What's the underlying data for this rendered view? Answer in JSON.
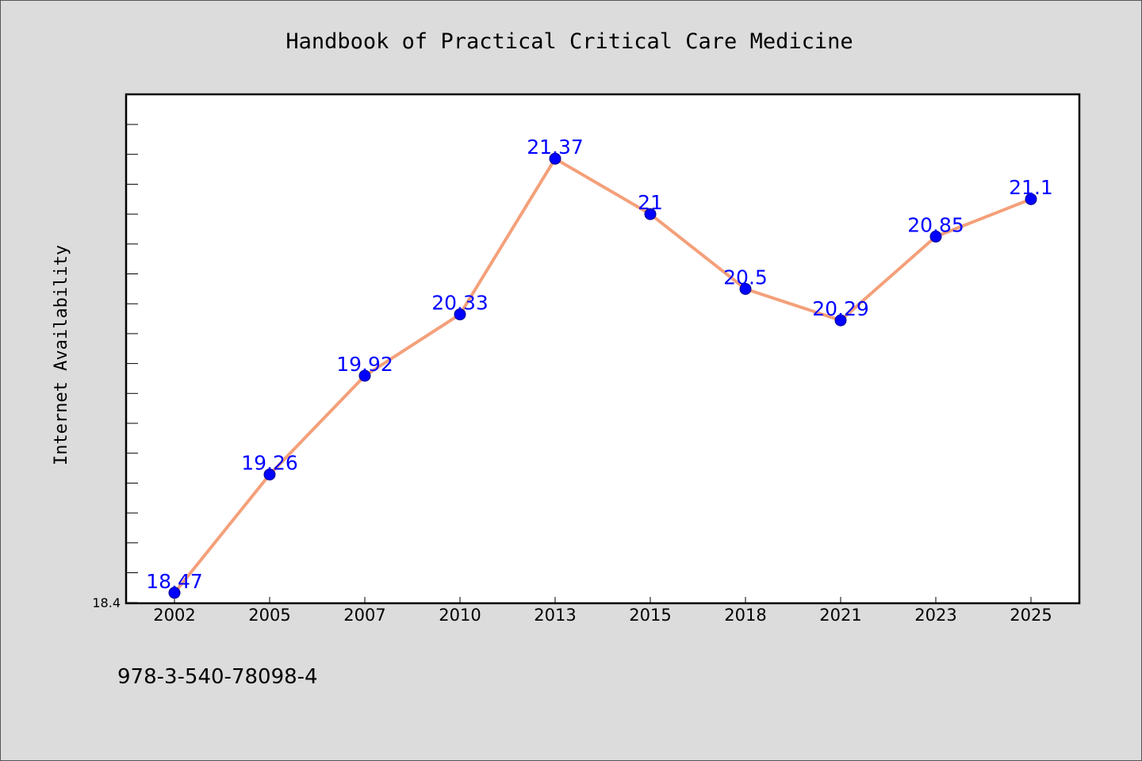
{
  "chart_data": {
    "type": "line",
    "title": "Handbook of Practical Critical Care Medicine",
    "ylabel": "Internet Availability",
    "xlabel": "",
    "categories": [
      "2002",
      "2005",
      "2007",
      "2010",
      "2013",
      "2015",
      "2018",
      "2021",
      "2023",
      "2025"
    ],
    "series": [
      {
        "values": [
          18.47,
          19.26,
          19.92,
          20.33,
          21.37,
          21,
          20.5,
          20.29,
          20.85,
          21.1
        ]
      }
    ],
    "data_labels": [
      "18.47",
      "19.26",
      "19.92",
      "20.33",
      "21.37",
      "21",
      "20.5",
      "20.29",
      "20.85",
      "21.1"
    ],
    "ylim": [
      18.4,
      21.8
    ],
    "y_tick_label": "18.4",
    "grid": false,
    "legend": "none",
    "colors": {
      "line": "#f4a07a",
      "marker": "#0000ff",
      "data_label": "#0000ff",
      "plot_background": "#ffffff",
      "page_background": "#dcdcdc"
    }
  },
  "footer": {
    "isbn": "978-3-540-78098-4"
  }
}
